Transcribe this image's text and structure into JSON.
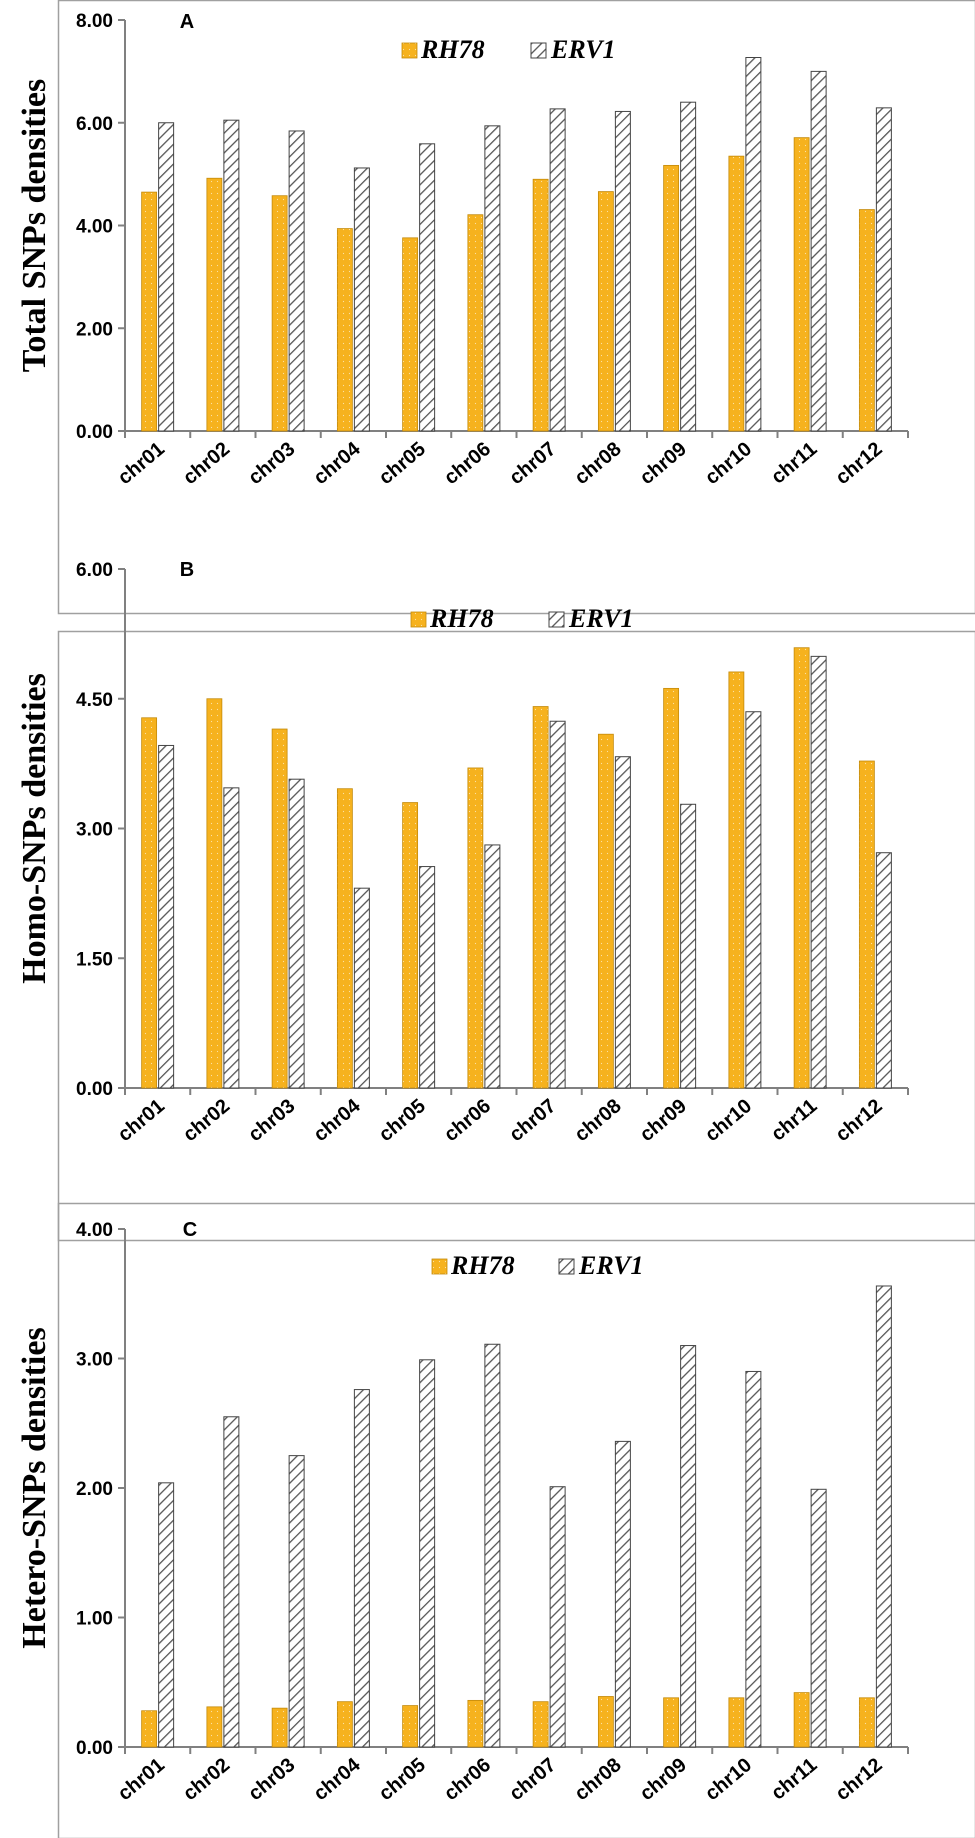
{
  "figure": {
    "colors": {
      "rh78": "#F6B21E",
      "erv1": "#FFFFFF",
      "hatch": "#555555",
      "axis": "#808080"
    }
  },
  "chart_data": [
    {
      "type": "bar",
      "panel": "A",
      "categories": [
        "chr01",
        "chr02",
        "chr03",
        "chr04",
        "chr05",
        "chr06",
        "chr07",
        "chr08",
        "chr09",
        "chr10",
        "chr11",
        "chr12"
      ],
      "series": [
        {
          "name": "RH78",
          "values": [
            4.65,
            4.92,
            4.58,
            3.94,
            3.76,
            4.21,
            4.9,
            4.66,
            5.17,
            5.35,
            5.71,
            4.31
          ]
        },
        {
          "name": "ERV1",
          "values": [
            6.0,
            6.05,
            5.84,
            5.12,
            5.59,
            5.94,
            6.27,
            6.22,
            6.4,
            7.27,
            7.0,
            6.29
          ]
        }
      ],
      "title": "",
      "xlabel": "",
      "ylabel": "Total SNPs densities",
      "ylim": [
        0,
        8
      ],
      "yticks": [
        "0.00",
        "2.00",
        "4.00",
        "6.00",
        "8.00"
      ],
      "legend": "top-center"
    },
    {
      "type": "bar",
      "panel": "B",
      "categories": [
        "chr01",
        "chr02",
        "chr03",
        "chr04",
        "chr05",
        "chr06",
        "chr07",
        "chr08",
        "chr09",
        "chr10",
        "chr11",
        "chr12"
      ],
      "series": [
        {
          "name": "RH78",
          "values": [
            4.28,
            4.5,
            4.15,
            3.46,
            3.3,
            3.7,
            4.41,
            4.09,
            4.62,
            4.81,
            5.09,
            3.78
          ]
        },
        {
          "name": "ERV1",
          "values": [
            3.96,
            3.47,
            3.57,
            2.31,
            2.56,
            2.81,
            4.24,
            3.83,
            3.28,
            4.35,
            4.99,
            2.72
          ]
        }
      ],
      "title": "",
      "xlabel": "",
      "ylabel": "Homo-SNPs densities",
      "ylim": [
        0,
        6
      ],
      "yticks": [
        "0.00",
        "1.50",
        "3.00",
        "4.50",
        "6.00"
      ],
      "legend": "top-center"
    },
    {
      "type": "bar",
      "panel": "C",
      "categories": [
        "chr01",
        "chr02",
        "chr03",
        "chr04",
        "chr05",
        "chr06",
        "chr07",
        "chr08",
        "chr09",
        "chr10",
        "chr11",
        "chr12"
      ],
      "series": [
        {
          "name": "RH78",
          "values": [
            0.28,
            0.31,
            0.3,
            0.35,
            0.32,
            0.36,
            0.35,
            0.39,
            0.38,
            0.38,
            0.42,
            0.38
          ]
        },
        {
          "name": "ERV1",
          "values": [
            2.04,
            2.55,
            2.25,
            2.76,
            2.99,
            3.11,
            2.01,
            2.36,
            3.1,
            2.9,
            1.99,
            3.56
          ]
        }
      ],
      "title": "",
      "xlabel": "",
      "ylabel": "Hetero-SNPs densities",
      "ylim": [
        0,
        4
      ],
      "yticks": [
        "0.00",
        "1.00",
        "2.00",
        "3.00",
        "4.00"
      ],
      "legend": "top-center"
    }
  ]
}
